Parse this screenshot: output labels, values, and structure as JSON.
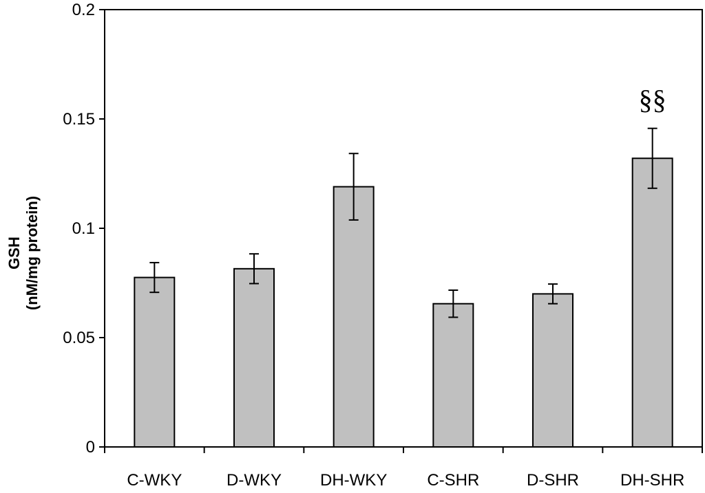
{
  "chart_data": {
    "type": "bar",
    "title": "",
    "xlabel": "",
    "ylabel_line1": "GSH",
    "ylabel_line2": "(nM/mg protein)",
    "categories": [
      "C-WKY",
      "D-WKY",
      "DH-WKY",
      "C-SHR",
      "D-SHR",
      "DH-SHR"
    ],
    "values": [
      0.0775,
      0.0815,
      0.119,
      0.0655,
      0.07,
      0.132
    ],
    "errors": [
      0.0068,
      0.0068,
      0.0152,
      0.0062,
      0.0045,
      0.0137
    ],
    "ylim": [
      0,
      0.2
    ],
    "yticks": [
      0,
      0.05,
      0.1,
      0.15,
      0.2
    ],
    "ytick_labels": [
      "0",
      "0.05",
      "0.1",
      "0.15",
      "0.2"
    ],
    "annotations": [
      {
        "category": "DH-SHR",
        "text": "§§"
      }
    ],
    "grid": false,
    "bar_color": "#c0c0c0",
    "bar_edge_color": "#000000"
  }
}
